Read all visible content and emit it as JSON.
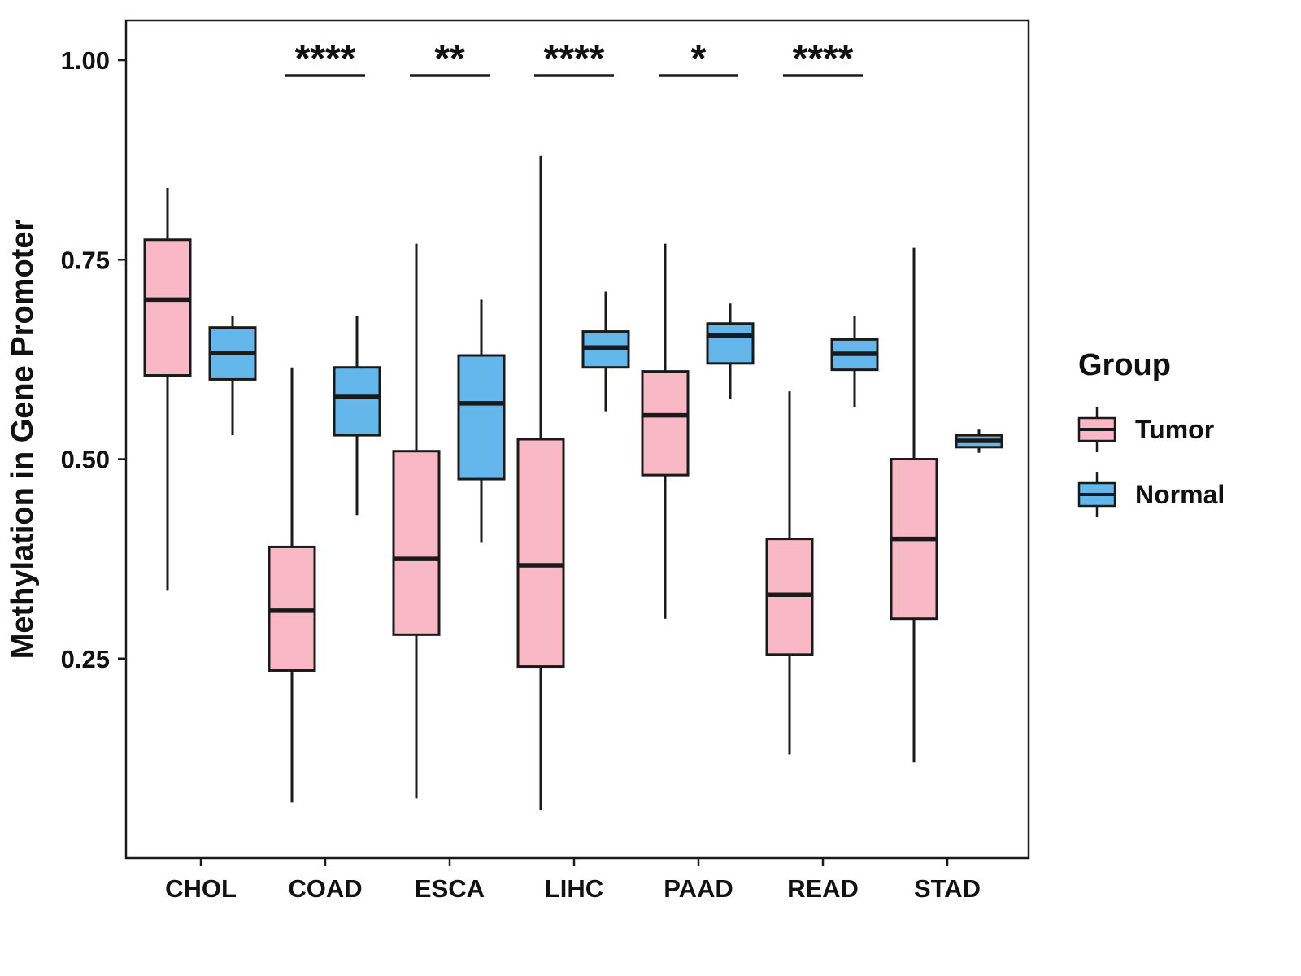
{
  "chart_data": {
    "type": "boxplot",
    "title": "",
    "xlabel": "",
    "ylabel": "Methylation in Gene Promoter",
    "ylim": [
      0.0,
      1.05
    ],
    "yticks": [
      0.25,
      0.5,
      0.75,
      1.0
    ],
    "ytick_labels": [
      "0.25",
      "0.50",
      "0.75",
      "1.00"
    ],
    "categories": [
      "CHOL",
      "COAD",
      "ESCA",
      "LIHC",
      "PAAD",
      "READ",
      "STAD"
    ],
    "groups": [
      {
        "name": "Tumor",
        "color": "#F9B8C5"
      },
      {
        "name": "Normal",
        "color": "#63B7EA"
      }
    ],
    "series": [
      {
        "group": "Tumor",
        "boxes": [
          {
            "category": "CHOL",
            "min": 0.335,
            "q1": 0.605,
            "median": 0.7,
            "q3": 0.775,
            "max": 0.84
          },
          {
            "category": "COAD",
            "min": 0.07,
            "q1": 0.235,
            "median": 0.31,
            "q3": 0.39,
            "max": 0.615
          },
          {
            "category": "ESCA",
            "min": 0.075,
            "q1": 0.28,
            "median": 0.375,
            "q3": 0.51,
            "max": 0.77
          },
          {
            "category": "LIHC",
            "min": 0.06,
            "q1": 0.24,
            "median": 0.367,
            "q3": 0.525,
            "max": 0.88
          },
          {
            "category": "PAAD",
            "min": 0.3,
            "q1": 0.48,
            "median": 0.555,
            "q3": 0.61,
            "max": 0.77
          },
          {
            "category": "READ",
            "min": 0.13,
            "q1": 0.255,
            "median": 0.33,
            "q3": 0.4,
            "max": 0.585
          },
          {
            "category": "STAD",
            "min": 0.12,
            "q1": 0.3,
            "median": 0.4,
            "q3": 0.5,
            "max": 0.765
          }
        ]
      },
      {
        "group": "Normal",
        "boxes": [
          {
            "category": "CHOL",
            "min": 0.53,
            "q1": 0.6,
            "median": 0.633,
            "q3": 0.665,
            "max": 0.68
          },
          {
            "category": "COAD",
            "min": 0.43,
            "q1": 0.53,
            "median": 0.578,
            "q3": 0.615,
            "max": 0.68
          },
          {
            "category": "ESCA",
            "min": 0.395,
            "q1": 0.475,
            "median": 0.57,
            "q3": 0.63,
            "max": 0.7
          },
          {
            "category": "LIHC",
            "min": 0.56,
            "q1": 0.615,
            "median": 0.64,
            "q3": 0.66,
            "max": 0.71
          },
          {
            "category": "PAAD",
            "min": 0.575,
            "q1": 0.62,
            "median": 0.655,
            "q3": 0.67,
            "max": 0.695
          },
          {
            "category": "READ",
            "min": 0.565,
            "q1": 0.612,
            "median": 0.632,
            "q3": 0.65,
            "max": 0.68
          },
          {
            "category": "STAD",
            "min": 0.508,
            "q1": 0.515,
            "median": 0.523,
            "q3": 0.53,
            "max": 0.537
          }
        ]
      }
    ],
    "significance": [
      {
        "category": "COAD",
        "label": "****"
      },
      {
        "category": "ESCA",
        "label": "**"
      },
      {
        "category": "LIHC",
        "label": "****"
      },
      {
        "category": "PAAD",
        "label": "*"
      },
      {
        "category": "READ",
        "label": "****"
      }
    ],
    "legend": {
      "title": "Group",
      "position": "right"
    }
  }
}
